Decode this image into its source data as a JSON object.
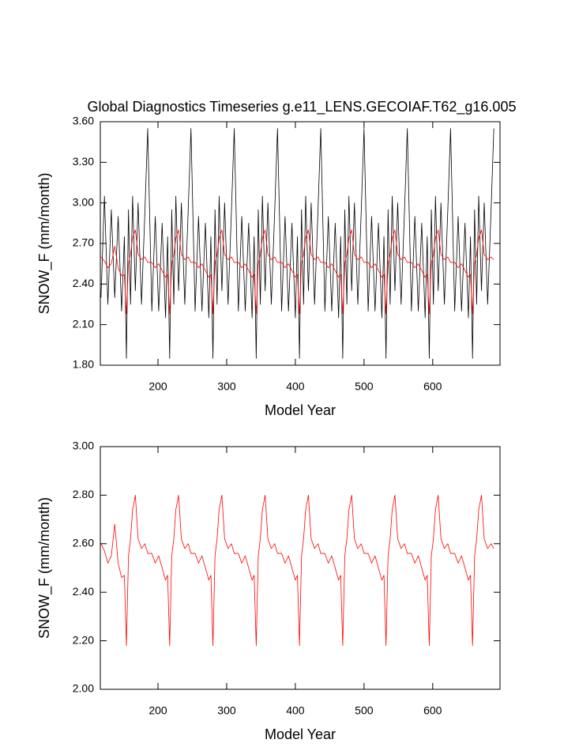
{
  "chart_data": [
    {
      "type": "line",
      "title": "Global Diagnostics Timeseries g.e11_LENS.GECOIAF.T62_g16.005",
      "xlabel": "Model Year",
      "ylabel": "SNOW_F (mm/month)",
      "xlim": [
        116,
        698
      ],
      "xticks": [
        200,
        300,
        400,
        500,
        600
      ],
      "ylim": [
        1.8,
        3.6
      ],
      "yticks": [
        {
          "value": 1.8,
          "label": "1.80"
        },
        {
          "value": 2.1,
          "label": "2.10"
        },
        {
          "value": 2.4,
          "label": "2.40"
        },
        {
          "value": 2.7,
          "label": "2.70"
        },
        {
          "value": 3.0,
          "label": "3.00"
        },
        {
          "value": 3.3,
          "label": "3.30"
        },
        {
          "value": 3.6,
          "label": "3.60"
        }
      ],
      "x": [
        117,
        122,
        127,
        132,
        137,
        142,
        147,
        151,
        154,
        157,
        160,
        163,
        167,
        171,
        176,
        181,
        185,
        191,
        196,
        201,
        206,
        211,
        214,
        217,
        220,
        223,
        226,
        230,
        234,
        239,
        244,
        248,
        254,
        259,
        264,
        269,
        274,
        277,
        280,
        283,
        286,
        289,
        293,
        297,
        302,
        307,
        311,
        317,
        322,
        327,
        332,
        337,
        340,
        343,
        346,
        349,
        352,
        356,
        360,
        365,
        370,
        374,
        380,
        385,
        390,
        395,
        400,
        403,
        406,
        409,
        412,
        415,
        419,
        423,
        428,
        433,
        437,
        443,
        448,
        453,
        458,
        463,
        466,
        469,
        472,
        475,
        478,
        482,
        486,
        491,
        496,
        500,
        506,
        511,
        516,
        521,
        526,
        529,
        532,
        535,
        538,
        541,
        545,
        549,
        554,
        559,
        563,
        569,
        574,
        579,
        584,
        589,
        592,
        595,
        598,
        601,
        604,
        608,
        612,
        617,
        622,
        626,
        632,
        637,
        642,
        647,
        652,
        655,
        658,
        661,
        664,
        667,
        671,
        675,
        680,
        685,
        689
      ],
      "series": [
        {
          "color": "#000000",
          "values": [
            2.3,
            3.05,
            2.25,
            2.95,
            2.3,
            2.9,
            2.2,
            2.75,
            1.85,
            2.95,
            2.25,
            3.05,
            2.35,
            3.0,
            2.25,
            2.95,
            3.55,
            2.2,
            2.9,
            2.2,
            2.85,
            2.15,
            2.75,
            1.85,
            2.95,
            2.25,
            3.05,
            2.35,
            3.0,
            2.25,
            2.95,
            3.55,
            2.2,
            2.9,
            2.2,
            2.85,
            2.15,
            2.75,
            1.85,
            2.95,
            2.25,
            3.05,
            2.35,
            3.0,
            2.25,
            2.95,
            3.55,
            2.2,
            2.9,
            2.2,
            2.85,
            2.15,
            2.75,
            1.85,
            2.95,
            2.25,
            3.05,
            2.35,
            3.0,
            2.25,
            2.95,
            3.55,
            2.2,
            2.9,
            2.2,
            2.85,
            2.15,
            2.75,
            1.85,
            2.95,
            2.25,
            3.05,
            2.35,
            3.0,
            2.25,
            2.95,
            3.55,
            2.2,
            2.9,
            2.2,
            2.85,
            2.15,
            2.75,
            1.85,
            2.95,
            2.25,
            3.05,
            2.35,
            3.0,
            2.25,
            2.95,
            3.55,
            2.2,
            2.9,
            2.2,
            2.85,
            2.15,
            2.75,
            1.85,
            2.95,
            2.25,
            3.05,
            2.35,
            3.0,
            2.25,
            2.95,
            3.55,
            2.2,
            2.9,
            2.2,
            2.85,
            2.15,
            2.75,
            1.85,
            2.95,
            2.25,
            3.05,
            2.35,
            3.0,
            2.25,
            2.95,
            3.55,
            2.2,
            2.9,
            2.2,
            2.85,
            2.15,
            2.75,
            1.85,
            2.95,
            2.25,
            3.05,
            2.35,
            3.0,
            2.25,
            2.95,
            3.55
          ]
        },
        {
          "color": "#ff0000",
          "values": [
            2.6,
            2.57,
            2.52,
            2.55,
            2.68,
            2.52,
            2.46,
            2.47,
            2.18,
            2.55,
            2.62,
            2.74,
            2.8,
            2.62,
            2.58,
            2.6,
            2.56,
            2.56,
            2.52,
            2.55,
            2.5,
            2.45,
            2.47,
            2.18,
            2.55,
            2.62,
            2.74,
            2.8,
            2.62,
            2.58,
            2.6,
            2.56,
            2.56,
            2.52,
            2.55,
            2.5,
            2.45,
            2.47,
            2.18,
            2.55,
            2.62,
            2.74,
            2.8,
            2.62,
            2.58,
            2.6,
            2.56,
            2.56,
            2.52,
            2.55,
            2.5,
            2.45,
            2.47,
            2.18,
            2.55,
            2.62,
            2.74,
            2.8,
            2.62,
            2.58,
            2.6,
            2.56,
            2.56,
            2.52,
            2.55,
            2.5,
            2.45,
            2.47,
            2.18,
            2.55,
            2.62,
            2.74,
            2.8,
            2.62,
            2.58,
            2.6,
            2.56,
            2.56,
            2.52,
            2.55,
            2.5,
            2.45,
            2.47,
            2.18,
            2.55,
            2.62,
            2.74,
            2.8,
            2.62,
            2.58,
            2.6,
            2.56,
            2.56,
            2.52,
            2.55,
            2.5,
            2.45,
            2.47,
            2.18,
            2.55,
            2.62,
            2.74,
            2.8,
            2.62,
            2.58,
            2.6,
            2.56,
            2.56,
            2.52,
            2.55,
            2.5,
            2.45,
            2.47,
            2.18,
            2.55,
            2.62,
            2.74,
            2.8,
            2.62,
            2.58,
            2.6,
            2.56,
            2.56,
            2.52,
            2.55,
            2.5,
            2.45,
            2.47,
            2.18,
            2.55,
            2.62,
            2.74,
            2.8,
            2.62,
            2.58,
            2.6,
            2.58
          ]
        }
      ]
    },
    {
      "type": "line",
      "xlabel": "Model Year",
      "ylabel": "SNOW_F (mm/month)",
      "xlim": [
        116,
        698
      ],
      "xticks": [
        200,
        300,
        400,
        500,
        600
      ],
      "ylim": [
        2.0,
        3.0
      ],
      "yticks": [
        {
          "value": 2.0,
          "label": "2.00"
        },
        {
          "value": 2.2,
          "label": "2.20"
        },
        {
          "value": 2.4,
          "label": "2.40"
        },
        {
          "value": 2.6,
          "label": "2.60"
        },
        {
          "value": 2.8,
          "label": "2.80"
        },
        {
          "value": 3.0,
          "label": "3.00"
        }
      ],
      "x": [
        117,
        122,
        127,
        132,
        137,
        142,
        147,
        151,
        154,
        157,
        160,
        163,
        167,
        171,
        176,
        181,
        185,
        191,
        196,
        201,
        206,
        211,
        214,
        217,
        220,
        223,
        226,
        230,
        234,
        239,
        244,
        248,
        254,
        259,
        264,
        269,
        274,
        277,
        280,
        283,
        286,
        289,
        293,
        297,
        302,
        307,
        311,
        317,
        322,
        327,
        332,
        337,
        340,
        343,
        346,
        349,
        352,
        356,
        360,
        365,
        370,
        374,
        380,
        385,
        390,
        395,
        400,
        403,
        406,
        409,
        412,
        415,
        419,
        423,
        428,
        433,
        437,
        443,
        448,
        453,
        458,
        463,
        466,
        469,
        472,
        475,
        478,
        482,
        486,
        491,
        496,
        500,
        506,
        511,
        516,
        521,
        526,
        529,
        532,
        535,
        538,
        541,
        545,
        549,
        554,
        559,
        563,
        569,
        574,
        579,
        584,
        589,
        592,
        595,
        598,
        601,
        604,
        608,
        612,
        617,
        622,
        626,
        632,
        637,
        642,
        647,
        652,
        655,
        658,
        661,
        664,
        667,
        671,
        675,
        680,
        685,
        689
      ],
      "series": [
        {
          "color": "#ff0000",
          "values": [
            2.6,
            2.57,
            2.52,
            2.55,
            2.68,
            2.52,
            2.46,
            2.47,
            2.18,
            2.55,
            2.62,
            2.74,
            2.8,
            2.62,
            2.58,
            2.6,
            2.56,
            2.56,
            2.52,
            2.55,
            2.5,
            2.45,
            2.47,
            2.18,
            2.55,
            2.62,
            2.74,
            2.8,
            2.62,
            2.58,
            2.6,
            2.56,
            2.56,
            2.52,
            2.55,
            2.5,
            2.45,
            2.47,
            2.18,
            2.55,
            2.62,
            2.74,
            2.8,
            2.62,
            2.58,
            2.6,
            2.56,
            2.56,
            2.52,
            2.55,
            2.5,
            2.45,
            2.47,
            2.18,
            2.55,
            2.62,
            2.74,
            2.8,
            2.62,
            2.58,
            2.6,
            2.56,
            2.56,
            2.52,
            2.55,
            2.5,
            2.45,
            2.47,
            2.18,
            2.55,
            2.62,
            2.74,
            2.8,
            2.62,
            2.58,
            2.6,
            2.56,
            2.56,
            2.52,
            2.55,
            2.5,
            2.45,
            2.47,
            2.18,
            2.55,
            2.62,
            2.74,
            2.8,
            2.62,
            2.58,
            2.6,
            2.56,
            2.56,
            2.52,
            2.55,
            2.5,
            2.45,
            2.47,
            2.18,
            2.55,
            2.62,
            2.74,
            2.8,
            2.62,
            2.58,
            2.6,
            2.56,
            2.56,
            2.52,
            2.55,
            2.5,
            2.45,
            2.47,
            2.18,
            2.55,
            2.62,
            2.74,
            2.8,
            2.62,
            2.58,
            2.6,
            2.56,
            2.56,
            2.52,
            2.55,
            2.5,
            2.45,
            2.47,
            2.18,
            2.55,
            2.62,
            2.74,
            2.8,
            2.62,
            2.58,
            2.6,
            2.58
          ]
        }
      ]
    }
  ]
}
